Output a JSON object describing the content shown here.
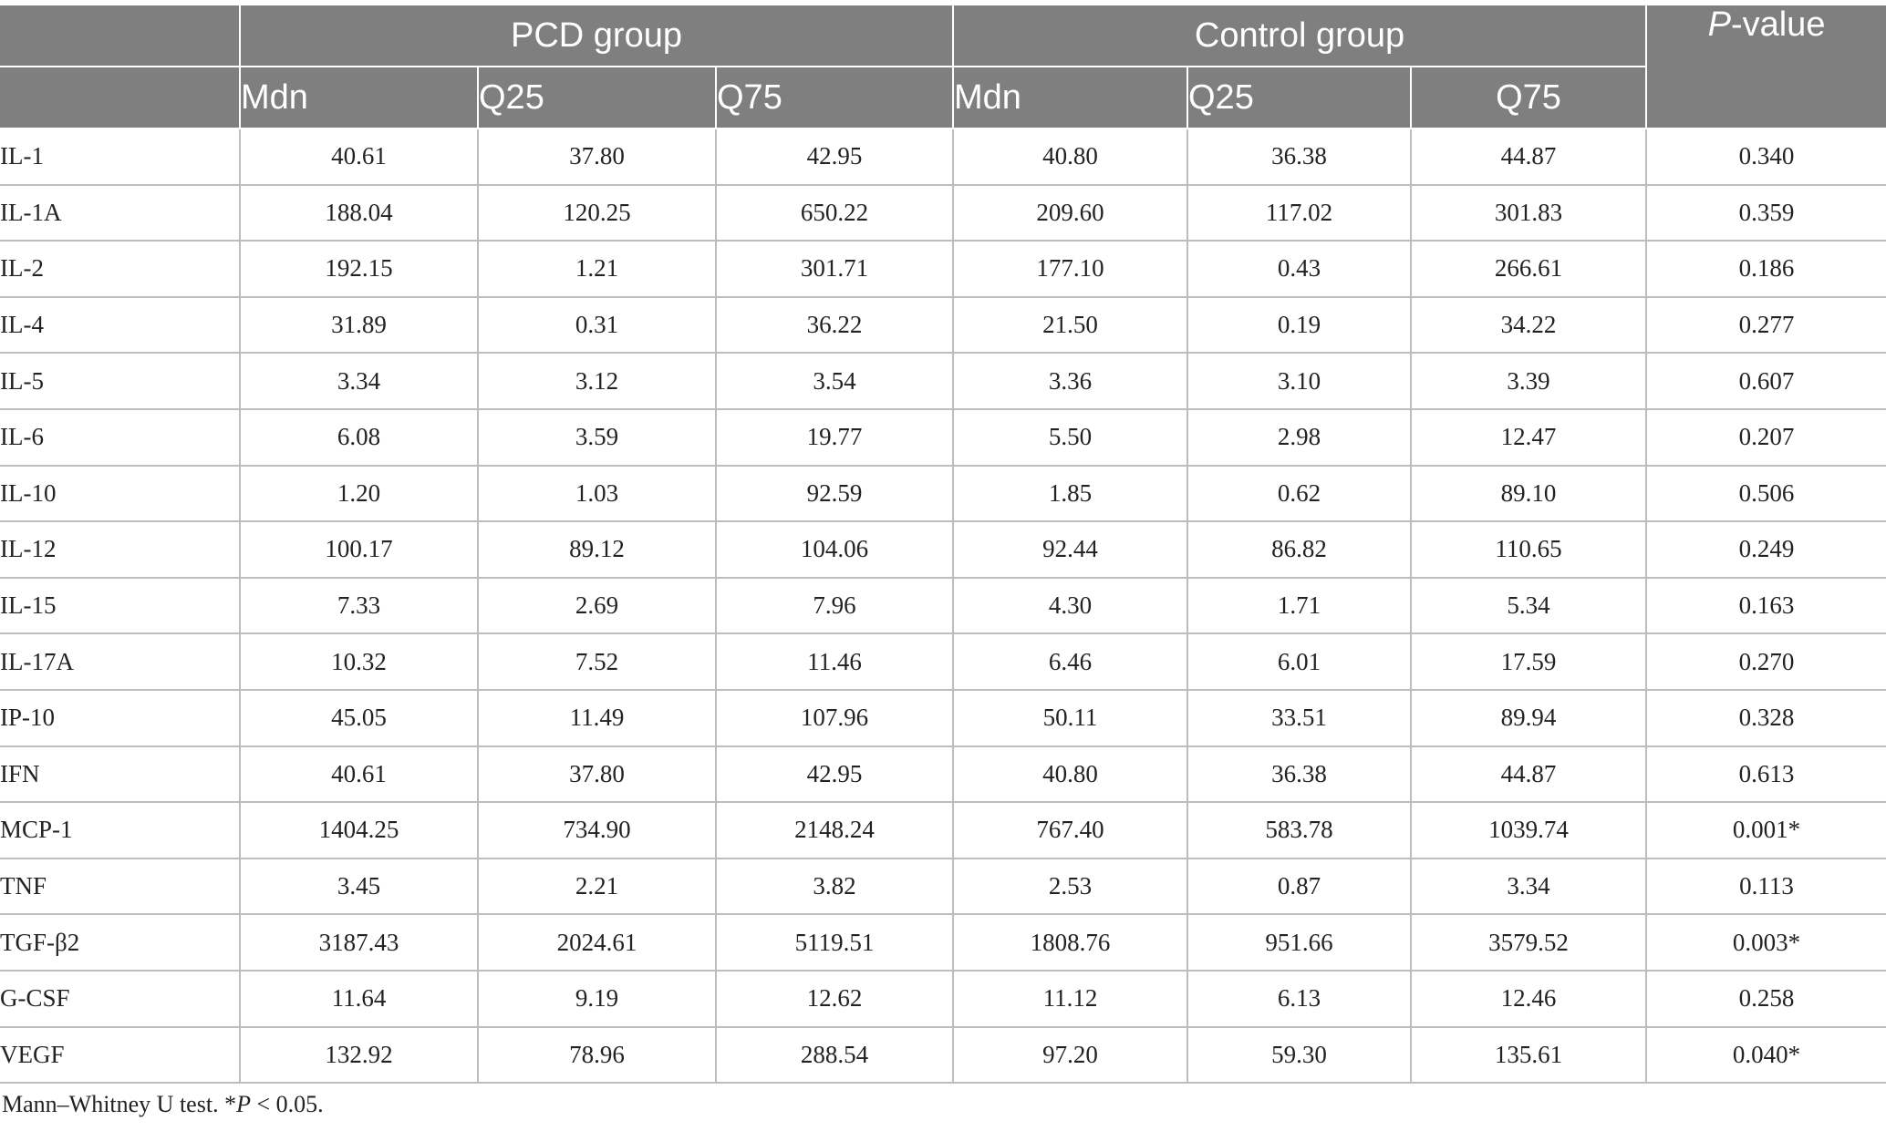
{
  "header": {
    "groups": [
      "PCD group",
      "Control group"
    ],
    "pvalue_letter": "P",
    "pvalue_rest": "-value",
    "pcd_cols": [
      "Mdn",
      "Q25",
      "Q75"
    ],
    "control_cols": [
      "Mdn",
      "Q25",
      "Q75"
    ]
  },
  "rows": [
    {
      "name": "IL-1",
      "vals": [
        "40.61",
        "37.80",
        "42.95",
        "40.80",
        "36.38",
        "44.87",
        "0.340"
      ]
    },
    {
      "name": "IL-1A",
      "vals": [
        "188.04",
        "120.25",
        "650.22",
        "209.60",
        "117.02",
        "301.83",
        "0.359"
      ]
    },
    {
      "name": "IL-2",
      "vals": [
        "192.15",
        "1.21",
        "301.71",
        "177.10",
        "0.43",
        "266.61",
        "0.186"
      ]
    },
    {
      "name": "IL-4",
      "vals": [
        "31.89",
        "0.31",
        "36.22",
        "21.50",
        "0.19",
        "34.22",
        "0.277"
      ]
    },
    {
      "name": "IL-5",
      "vals": [
        "3.34",
        "3.12",
        "3.54",
        "3.36",
        "3.10",
        "3.39",
        "0.607"
      ]
    },
    {
      "name": "IL-6",
      "vals": [
        "6.08",
        "3.59",
        "19.77",
        "5.50",
        "2.98",
        "12.47",
        "0.207"
      ]
    },
    {
      "name": "IL-10",
      "vals": [
        "1.20",
        "1.03",
        "92.59",
        "1.85",
        "0.62",
        "89.10",
        "0.506"
      ]
    },
    {
      "name": "IL-12",
      "vals": [
        "100.17",
        "89.12",
        "104.06",
        "92.44",
        "86.82",
        "110.65",
        "0.249"
      ]
    },
    {
      "name": "IL-15",
      "vals": [
        "7.33",
        "2.69",
        "7.96",
        "4.30",
        "1.71",
        "5.34",
        "0.163"
      ]
    },
    {
      "name": "IL-17A",
      "vals": [
        "10.32",
        "7.52",
        "11.46",
        "6.46",
        "6.01",
        "17.59",
        "0.270"
      ]
    },
    {
      "name": "IP-10",
      "vals": [
        "45.05",
        "11.49",
        "107.96",
        "50.11",
        "33.51",
        "89.94",
        "0.328"
      ]
    },
    {
      "name": "IFN",
      "vals": [
        "40.61",
        "37.80",
        "42.95",
        "40.80",
        "36.38",
        "44.87",
        "0.613"
      ]
    },
    {
      "name": "MCP-1",
      "vals": [
        "1404.25",
        "734.90",
        "2148.24",
        "767.40",
        "583.78",
        "1039.74",
        "0.001*"
      ]
    },
    {
      "name": "TNF",
      "vals": [
        "3.45",
        "2.21",
        "3.82",
        "2.53",
        "0.87",
        "3.34",
        "0.113"
      ]
    },
    {
      "name": "TGF-β2",
      "vals": [
        "3187.43",
        "2024.61",
        "5119.51",
        "1808.76",
        "951.66",
        "3579.52",
        "0.003*"
      ]
    },
    {
      "name": "G-CSF",
      "vals": [
        "11.64",
        "9.19",
        "12.62",
        "11.12",
        "6.13",
        "12.46",
        "0.258"
      ]
    },
    {
      "name": "VEGF",
      "vals": [
        "132.92",
        "78.96",
        "288.54",
        "97.20",
        "59.30",
        "135.61",
        "0.040*"
      ]
    }
  ],
  "footnote": {
    "test": "Mann–Whitney U test. *",
    "p_letter": "P",
    "threshold": " < 0.05."
  }
}
